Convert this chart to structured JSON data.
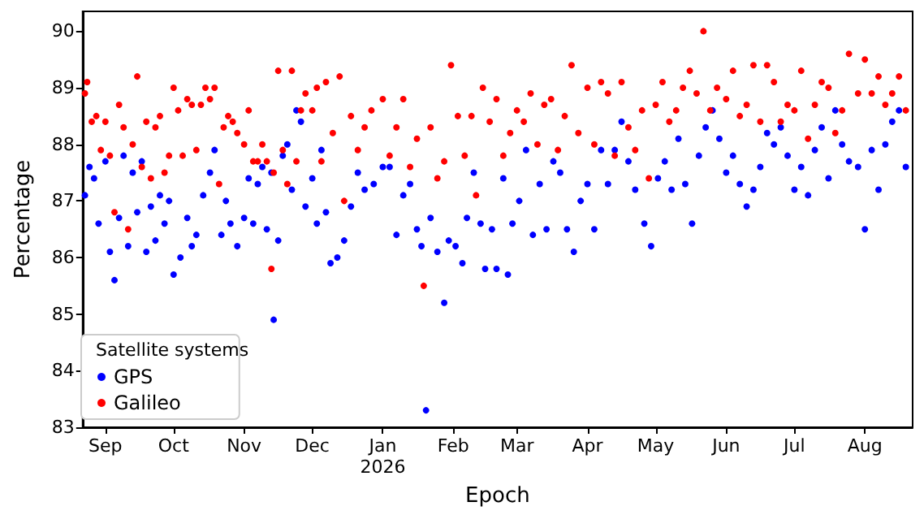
{
  "chart_data": {
    "type": "scatter",
    "xlabel": "Epoch",
    "ylabel": "Percentage",
    "legend_title": "Satellite systems",
    "legend": "bottom left",
    "marker": "circle",
    "grid": false,
    "xlim": [
      "2025-08-22",
      "2026-08-22"
    ],
    "xticks": [
      {
        "value": "2025-09-01",
        "label": "Sep"
      },
      {
        "value": "2025-10-01",
        "label": "Oct"
      },
      {
        "value": "2025-11-01",
        "label": "Nov"
      },
      {
        "value": "2025-12-01",
        "label": "Dec"
      },
      {
        "value": "2026-01-01",
        "label": "Jan\n2026"
      },
      {
        "value": "2026-02-01",
        "label": "Feb"
      },
      {
        "value": "2026-03-01",
        "label": "Mar"
      },
      {
        "value": "2026-04-01",
        "label": "Apr"
      },
      {
        "value": "2026-05-01",
        "label": "May"
      },
      {
        "value": "2026-06-01",
        "label": "Jun"
      },
      {
        "value": "2026-07-01",
        "label": "Jul"
      },
      {
        "value": "2026-08-01",
        "label": "Aug"
      }
    ],
    "ylim": [
      83,
      90.35
    ],
    "yticks": [
      83,
      84,
      85,
      86,
      87,
      88,
      89,
      90
    ],
    "series": [
      {
        "name": "GPS",
        "color": "#0000ff",
        "x": [
          "2025-08-23",
          "2025-08-25",
          "2025-08-27",
          "2025-08-29",
          "2025-09-01",
          "2025-09-03",
          "2025-09-05",
          "2025-09-07",
          "2025-09-09",
          "2025-09-11",
          "2025-09-13",
          "2025-09-15",
          "2025-09-17",
          "2025-09-19",
          "2025-09-21",
          "2025-09-23",
          "2025-09-25",
          "2025-09-27",
          "2025-09-29",
          "2025-10-01",
          "2025-10-04",
          "2025-10-07",
          "2025-10-09",
          "2025-10-11",
          "2025-10-14",
          "2025-10-17",
          "2025-10-19",
          "2025-10-22",
          "2025-10-24",
          "2025-10-26",
          "2025-10-29",
          "2025-11-01",
          "2025-11-03",
          "2025-11-05",
          "2025-11-07",
          "2025-11-09",
          "2025-11-11",
          "2025-11-13",
          "2025-11-14",
          "2025-11-16",
          "2025-11-18",
          "2025-11-20",
          "2025-11-22",
          "2025-11-24",
          "2025-11-26",
          "2025-11-28",
          "2025-12-01",
          "2025-12-03",
          "2025-12-05",
          "2025-12-07",
          "2025-12-09",
          "2025-12-12",
          "2025-12-15",
          "2025-12-18",
          "2025-12-21",
          "2025-12-24",
          "2025-12-28",
          "2026-01-01",
          "2026-01-04",
          "2026-01-07",
          "2026-01-10",
          "2026-01-13",
          "2026-01-16",
          "2026-01-18",
          "2026-01-20",
          "2026-01-22",
          "2026-01-25",
          "2026-01-28",
          "2026-01-30",
          "2026-02-02",
          "2026-02-05",
          "2026-02-07",
          "2026-02-10",
          "2026-02-13",
          "2026-02-15",
          "2026-02-18",
          "2026-02-20",
          "2026-02-23",
          "2026-02-25",
          "2026-02-27",
          "2026-03-02",
          "2026-03-05",
          "2026-03-08",
          "2026-03-11",
          "2026-03-14",
          "2026-03-17",
          "2026-03-20",
          "2026-03-23",
          "2026-03-26",
          "2026-03-29",
          "2026-04-01",
          "2026-04-04",
          "2026-04-07",
          "2026-04-10",
          "2026-04-13",
          "2026-04-16",
          "2026-04-19",
          "2026-04-22",
          "2026-04-26",
          "2026-04-29",
          "2026-05-02",
          "2026-05-05",
          "2026-05-08",
          "2026-05-11",
          "2026-05-14",
          "2026-05-17",
          "2026-05-20",
          "2026-05-23",
          "2026-05-26",
          "2026-05-29",
          "2026-06-01",
          "2026-06-04",
          "2026-06-07",
          "2026-06-10",
          "2026-06-13",
          "2026-06-16",
          "2026-06-19",
          "2026-06-22",
          "2026-06-25",
          "2026-06-28",
          "2026-07-01",
          "2026-07-04",
          "2026-07-07",
          "2026-07-10",
          "2026-07-13",
          "2026-07-16",
          "2026-07-19",
          "2026-07-22",
          "2026-07-25",
          "2026-07-29",
          "2026-08-01",
          "2026-08-04",
          "2026-08-07",
          "2026-08-10",
          "2026-08-13",
          "2026-08-16",
          "2026-08-19"
        ],
        "values": [
          87.1,
          87.6,
          87.4,
          86.6,
          87.7,
          86.1,
          85.6,
          86.7,
          87.8,
          86.2,
          87.5,
          86.8,
          87.7,
          86.1,
          86.9,
          86.3,
          87.1,
          86.6,
          87.0,
          85.7,
          86.0,
          86.7,
          86.2,
          86.4,
          87.1,
          87.5,
          87.9,
          86.4,
          87.0,
          86.6,
          86.2,
          86.7,
          87.4,
          86.6,
          87.3,
          87.6,
          86.5,
          87.5,
          84.9,
          86.3,
          87.8,
          88.0,
          87.2,
          88.6,
          88.4,
          86.9,
          87.4,
          86.6,
          87.9,
          86.8,
          85.9,
          86.0,
          86.3,
          86.9,
          87.5,
          87.2,
          87.3,
          87.6,
          87.6,
          86.4,
          87.1,
          87.3,
          86.5,
          86.2,
          83.3,
          86.7,
          86.1,
          85.2,
          86.3,
          86.2,
          85.9,
          86.7,
          87.5,
          86.6,
          85.8,
          86.5,
          85.8,
          87.4,
          85.7,
          86.6,
          87.0,
          87.9,
          86.4,
          87.3,
          86.5,
          87.7,
          87.5,
          86.5,
          86.1,
          87.0,
          87.3,
          86.5,
          87.9,
          87.3,
          87.9,
          88.4,
          87.7,
          87.2,
          86.6,
          86.2,
          87.4,
          87.7,
          87.2,
          88.1,
          87.3,
          86.6,
          87.8,
          88.3,
          88.6,
          88.1,
          87.5,
          87.8,
          87.3,
          86.9,
          87.2,
          87.6,
          88.2,
          88.0,
          88.3,
          87.8,
          87.2,
          87.6,
          87.1,
          87.9,
          88.3,
          87.4,
          88.6,
          88.0,
          87.7,
          87.6,
          86.5,
          87.9,
          87.2,
          88.0,
          88.4,
          88.6,
          87.6
        ]
      },
      {
        "name": "Galileo",
        "color": "#ff0000",
        "x": [
          "2025-08-23",
          "2025-08-24",
          "2025-08-26",
          "2025-08-28",
          "2025-08-30",
          "2025-09-01",
          "2025-09-03",
          "2025-09-05",
          "2025-09-07",
          "2025-09-09",
          "2025-09-11",
          "2025-09-13",
          "2025-09-15",
          "2025-09-17",
          "2025-09-19",
          "2025-09-21",
          "2025-09-23",
          "2025-09-25",
          "2025-09-27",
          "2025-09-29",
          "2025-10-01",
          "2025-10-03",
          "2025-10-05",
          "2025-10-07",
          "2025-10-09",
          "2025-10-11",
          "2025-10-13",
          "2025-10-15",
          "2025-10-17",
          "2025-10-19",
          "2025-10-21",
          "2025-10-23",
          "2025-10-25",
          "2025-10-27",
          "2025-10-29",
          "2025-11-01",
          "2025-11-03",
          "2025-11-05",
          "2025-11-07",
          "2025-11-09",
          "2025-11-11",
          "2025-11-13",
          "2025-11-14",
          "2025-11-16",
          "2025-11-18",
          "2025-11-20",
          "2025-11-22",
          "2025-11-24",
          "2025-11-26",
          "2025-11-28",
          "2025-12-01",
          "2025-12-03",
          "2025-12-05",
          "2025-12-07",
          "2025-12-10",
          "2025-12-13",
          "2025-12-15",
          "2025-12-18",
          "2025-12-21",
          "2025-12-24",
          "2025-12-27",
          "2026-01-01",
          "2026-01-04",
          "2026-01-07",
          "2026-01-10",
          "2026-01-13",
          "2026-01-16",
          "2026-01-19",
          "2026-01-22",
          "2026-01-25",
          "2026-01-28",
          "2026-01-31",
          "2026-02-03",
          "2026-02-06",
          "2026-02-09",
          "2026-02-11",
          "2026-02-14",
          "2026-02-17",
          "2026-02-20",
          "2026-02-23",
          "2026-02-26",
          "2026-03-01",
          "2026-03-04",
          "2026-03-07",
          "2026-03-10",
          "2026-03-13",
          "2026-03-16",
          "2026-03-19",
          "2026-03-22",
          "2026-03-25",
          "2026-03-28",
          "2026-04-01",
          "2026-04-04",
          "2026-04-07",
          "2026-04-10",
          "2026-04-13",
          "2026-04-16",
          "2026-04-19",
          "2026-04-22",
          "2026-04-25",
          "2026-04-28",
          "2026-05-01",
          "2026-05-04",
          "2026-05-07",
          "2026-05-10",
          "2026-05-13",
          "2026-05-16",
          "2026-05-19",
          "2026-05-22",
          "2026-05-25",
          "2026-05-28",
          "2026-06-01",
          "2026-06-04",
          "2026-06-07",
          "2026-06-10",
          "2026-06-13",
          "2026-06-16",
          "2026-06-19",
          "2026-06-22",
          "2026-06-25",
          "2026-06-28",
          "2026-07-01",
          "2026-07-04",
          "2026-07-07",
          "2026-07-10",
          "2026-07-13",
          "2026-07-16",
          "2026-07-19",
          "2026-07-22",
          "2026-07-25",
          "2026-07-29",
          "2026-08-01",
          "2026-08-04",
          "2026-08-07",
          "2026-08-10",
          "2026-08-13",
          "2026-08-16",
          "2026-08-19"
        ],
        "values": [
          88.9,
          89.1,
          88.4,
          88.5,
          87.9,
          88.4,
          87.8,
          86.8,
          88.7,
          88.3,
          86.5,
          88.0,
          89.2,
          87.6,
          88.4,
          87.4,
          88.3,
          88.5,
          87.5,
          87.8,
          89.0,
          88.6,
          87.8,
          88.8,
          88.7,
          87.9,
          88.7,
          89.0,
          88.8,
          89.0,
          87.3,
          88.3,
          88.5,
          88.4,
          88.2,
          88.0,
          88.6,
          87.7,
          87.7,
          88.0,
          87.7,
          85.8,
          87.5,
          89.3,
          87.9,
          87.3,
          89.3,
          87.7,
          88.6,
          88.9,
          88.6,
          89.0,
          87.7,
          89.1,
          88.2,
          89.2,
          87.0,
          88.5,
          87.9,
          88.3,
          88.6,
          88.8,
          87.8,
          88.3,
          88.8,
          87.6,
          88.1,
          85.5,
          88.3,
          87.4,
          87.7,
          89.4,
          88.5,
          87.8,
          88.5,
          87.1,
          89.0,
          88.4,
          88.8,
          87.8,
          88.2,
          88.6,
          88.4,
          88.9,
          88.0,
          88.7,
          88.8,
          87.9,
          88.5,
          89.4,
          88.2,
          89.0,
          88.0,
          89.1,
          88.9,
          87.8,
          89.1,
          88.3,
          87.9,
          88.6,
          87.4,
          88.7,
          89.1,
          88.4,
          88.6,
          89.0,
          89.3,
          88.9,
          90.0,
          88.6,
          89.0,
          88.8,
          89.3,
          88.5,
          88.7,
          89.4,
          88.4,
          89.4,
          89.1,
          88.4,
          88.7,
          88.6,
          89.3,
          88.1,
          88.7,
          89.1,
          89.0,
          88.2,
          88.6,
          89.6,
          88.9,
          89.5,
          88.9,
          89.2,
          88.7,
          88.9,
          89.2,
          88.6
        ]
      }
    ]
  }
}
